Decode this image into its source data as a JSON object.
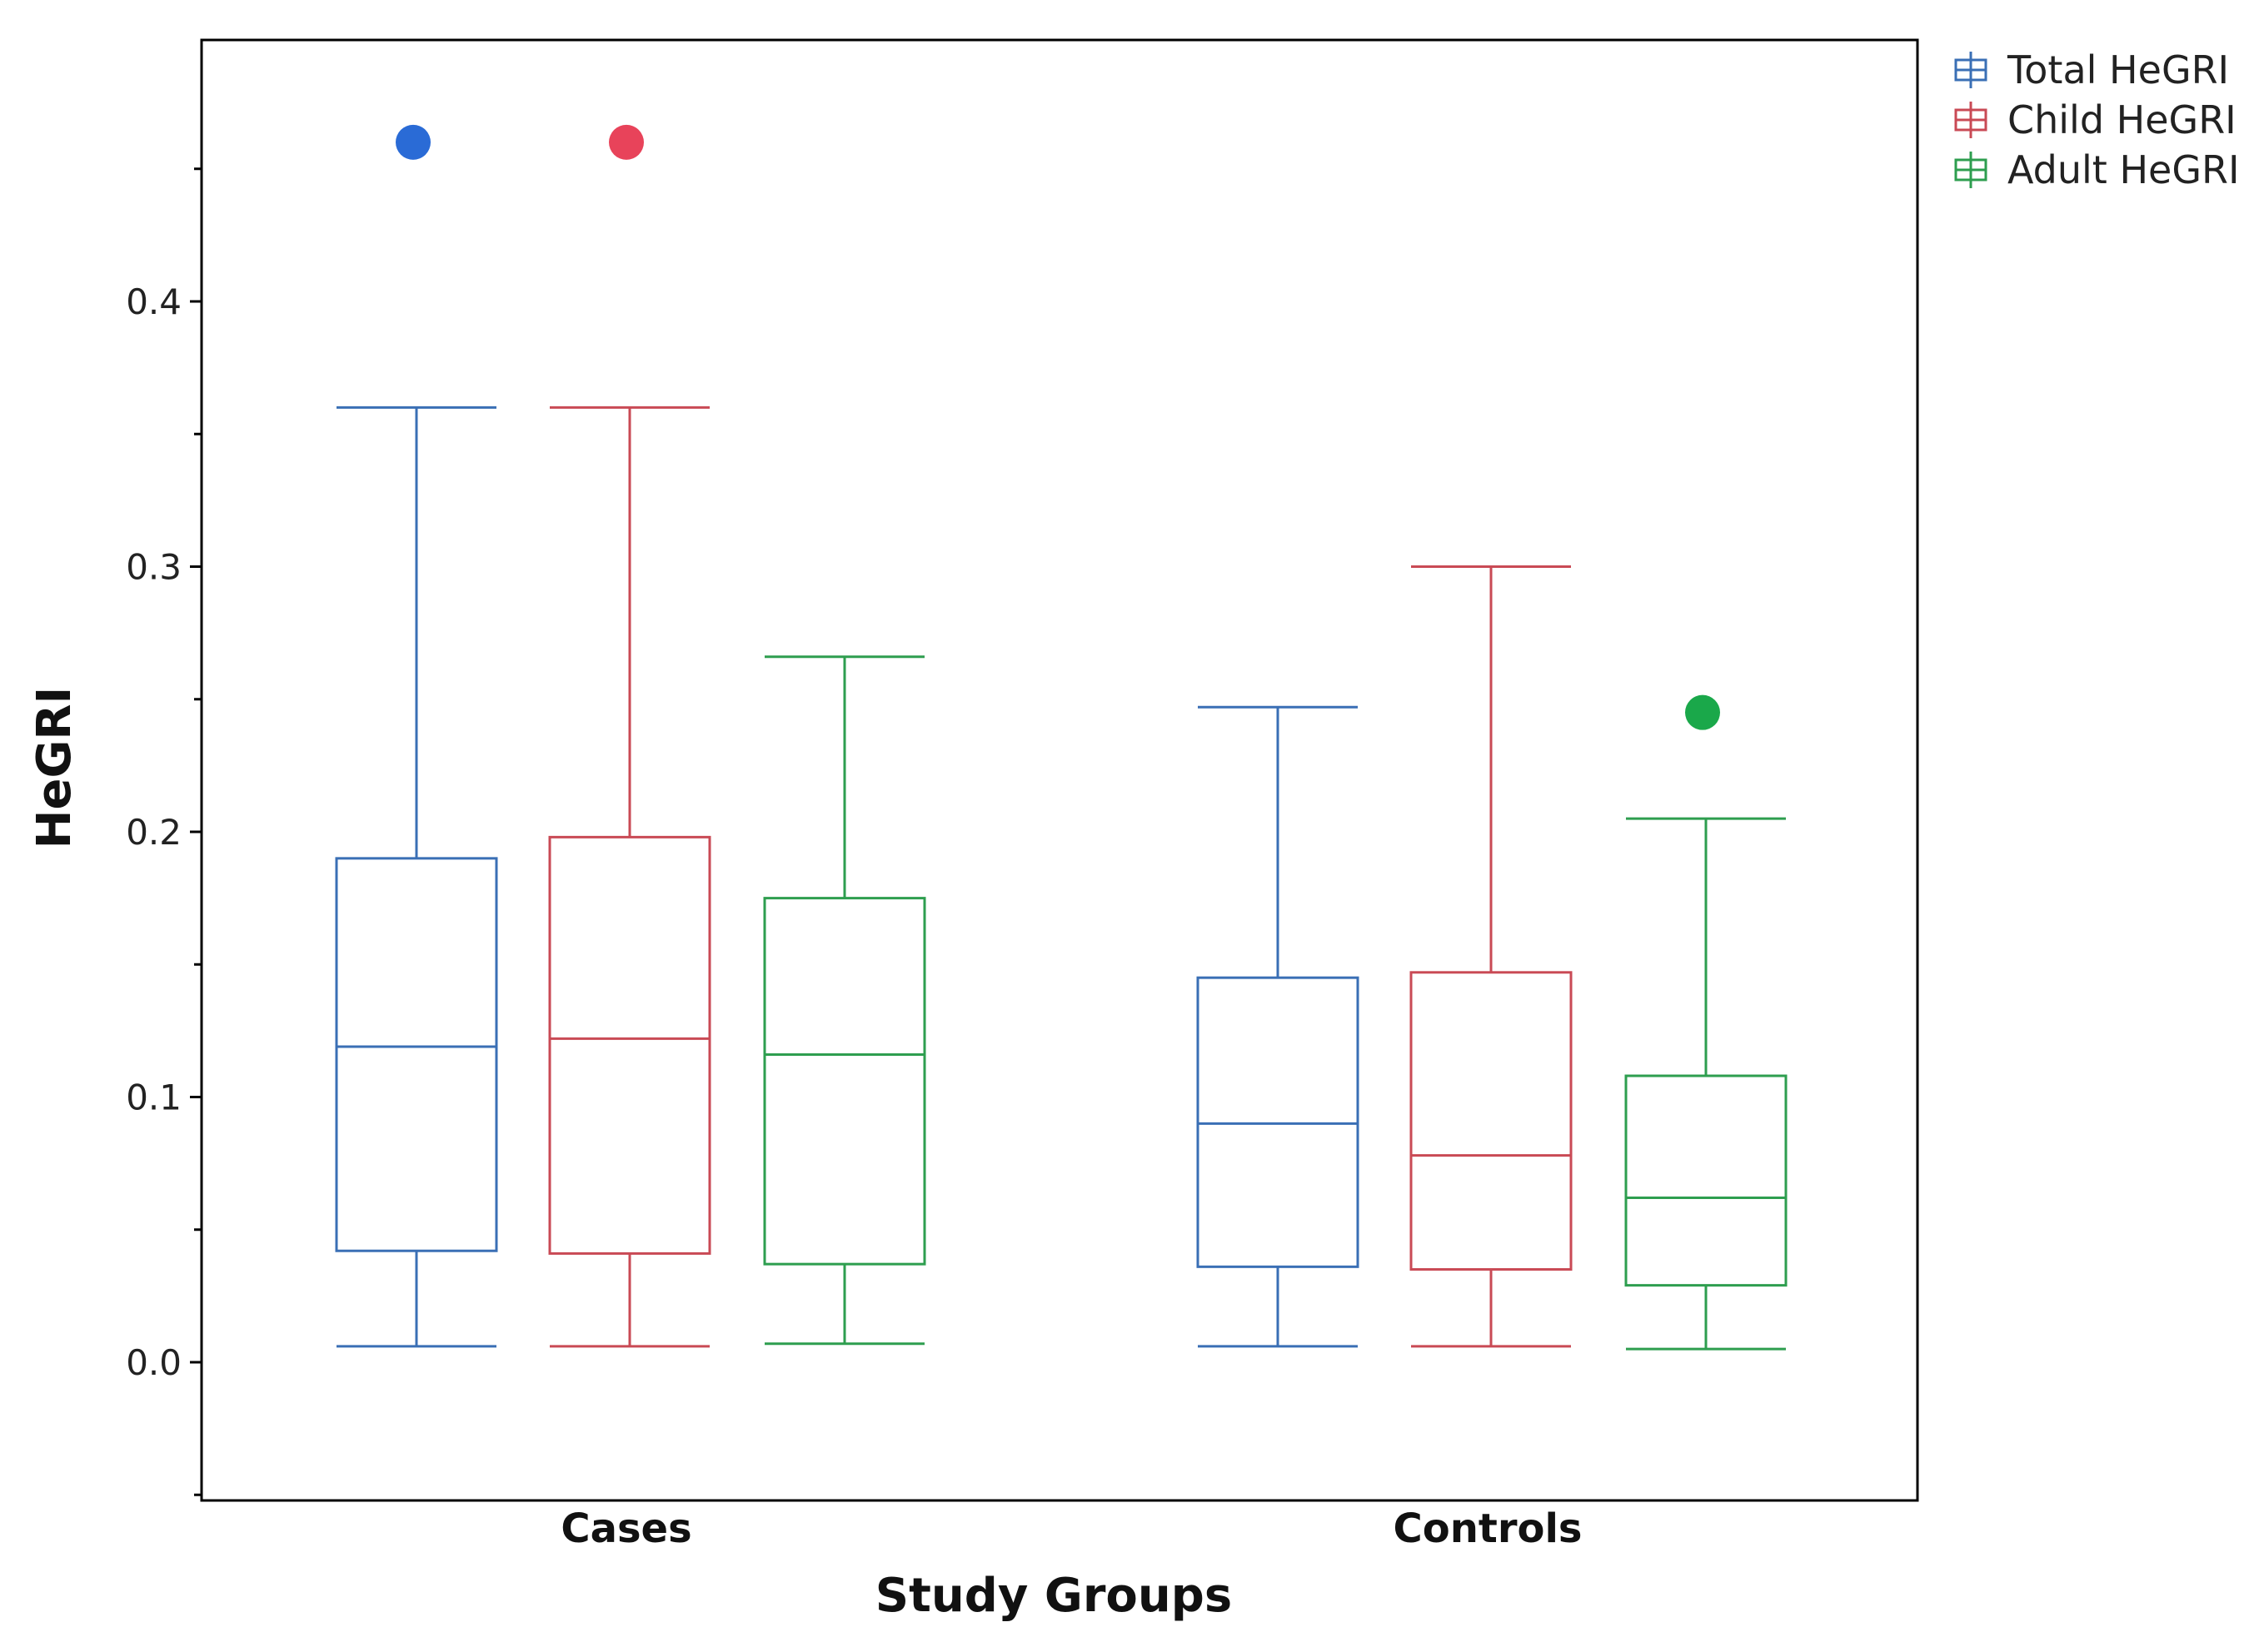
{
  "chart_data": {
    "type": "boxplot",
    "xlabel": "Study Groups",
    "ylabel": "HeGRI",
    "ylim": [
      -0.05,
      0.5
    ],
    "yticks": [
      0.0,
      0.1,
      0.2,
      0.3,
      0.4
    ],
    "ytick_labels": [
      "0.0",
      "0.1",
      "0.2",
      "0.3",
      "0.4"
    ],
    "categories": [
      "Cases",
      "Controls"
    ],
    "legend_position": "top-right (outside plot)",
    "grid": false,
    "series": [
      {
        "name": "Total HeGRI",
        "color": "#3a6fb5",
        "outlier_color": "#2a6bd6",
        "boxes": [
          {
            "category": "Cases",
            "min": 0.006,
            "q1": 0.042,
            "median": 0.119,
            "q3": 0.19,
            "max": 0.36,
            "outliers": [
              0.46
            ]
          },
          {
            "category": "Controls",
            "min": 0.006,
            "q1": 0.036,
            "median": 0.09,
            "q3": 0.145,
            "max": 0.247,
            "outliers": []
          }
        ]
      },
      {
        "name": "Child HeGRI",
        "color": "#c94a55",
        "outlier_color": "#e8435a",
        "boxes": [
          {
            "category": "Cases",
            "min": 0.006,
            "q1": 0.041,
            "median": 0.122,
            "q3": 0.198,
            "max": 0.36,
            "outliers": [
              0.46
            ]
          },
          {
            "category": "Controls",
            "min": 0.006,
            "q1": 0.035,
            "median": 0.078,
            "q3": 0.147,
            "max": 0.3,
            "outliers": []
          }
        ]
      },
      {
        "name": "Adult HeGRI",
        "color": "#2e9e4f",
        "outlier_color": "#1aa84a",
        "boxes": [
          {
            "category": "Cases",
            "min": 0.007,
            "q1": 0.037,
            "median": 0.116,
            "q3": 0.175,
            "max": 0.266,
            "outliers": []
          },
          {
            "category": "Controls",
            "min": 0.005,
            "q1": 0.029,
            "median": 0.062,
            "q3": 0.108,
            "max": 0.205,
            "outliers": [
              0.245
            ]
          }
        ]
      }
    ]
  }
}
